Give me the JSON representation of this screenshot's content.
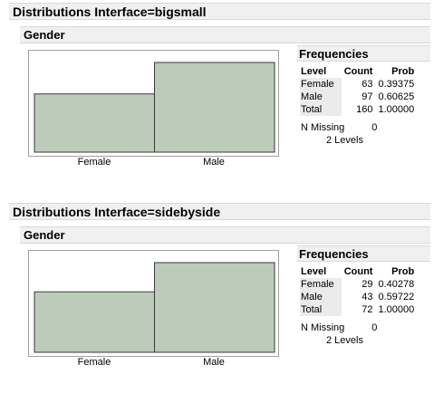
{
  "sections": [
    {
      "title": "Distributions Interface=bigsmall",
      "subtitle": "Gender",
      "frequencies": {
        "title": "Frequencies",
        "headers": [
          "Level",
          "Count",
          "Prob"
        ],
        "rows": [
          {
            "level": "Female",
            "count": "63",
            "prob": "0.39375"
          },
          {
            "level": "Male",
            "count": "97",
            "prob": "0.60625"
          },
          {
            "level": "Total",
            "count": "160",
            "prob": "1.00000"
          }
        ],
        "n_missing_label": "N Missing",
        "n_missing": "0",
        "levels_label": "2  Levels"
      },
      "chart_data": {
        "type": "bar",
        "categories": [
          "Female",
          "Male"
        ],
        "values": [
          63,
          97
        ],
        "ylim": [
          0,
          97
        ],
        "bar_color": "#bccbba"
      }
    },
    {
      "title": "Distributions Interface=sidebyside",
      "subtitle": "Gender",
      "frequencies": {
        "title": "Frequencies",
        "headers": [
          "Level",
          "Count",
          "Prob"
        ],
        "rows": [
          {
            "level": "Female",
            "count": "29",
            "prob": "0.40278"
          },
          {
            "level": "Male",
            "count": "43",
            "prob": "0.59722"
          },
          {
            "level": "Total",
            "count": "72",
            "prob": "1.00000"
          }
        ],
        "n_missing_label": "N Missing",
        "n_missing": "0",
        "levels_label": "2  Levels"
      },
      "chart_data": {
        "type": "bar",
        "categories": [
          "Female",
          "Male"
        ],
        "values": [
          29,
          43
        ],
        "ylim": [
          0,
          43
        ],
        "bar_color": "#bccbba"
      }
    }
  ]
}
